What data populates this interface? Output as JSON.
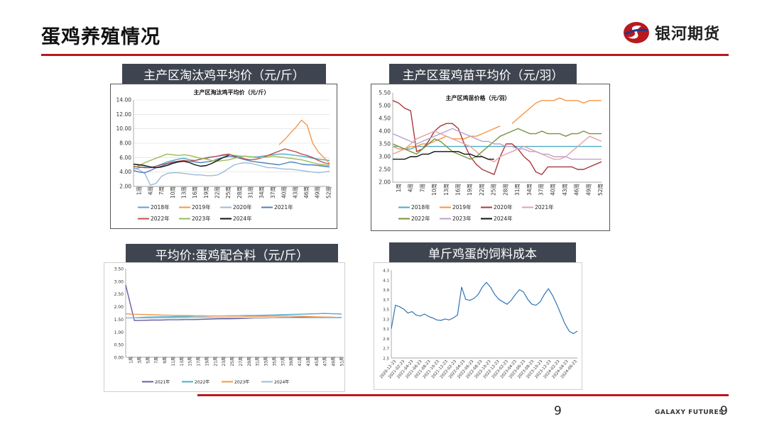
{
  "header": {
    "title": "蛋鸡养殖情况",
    "brand_name": "银河期货",
    "brand_color": "#b8191f",
    "logo_icon": "galaxy-s-logo-icon"
  },
  "footer": {
    "page_number": "9",
    "brand_en": "GALAXY FUTURES",
    "page_number_right": "9"
  },
  "panels": {
    "p1": {
      "label": "主产区淘汰鸡平均价（元/斤）"
    },
    "p2": {
      "label": "主产区蛋鸡苗平均价（元/羽）"
    },
    "p3": {
      "label": "平均价:蛋鸡配合料（元/斤）"
    },
    "p4": {
      "label": "单斤鸡蛋的饲料成本"
    }
  },
  "chart_data": [
    {
      "id": "cull-hen",
      "type": "line",
      "title": "主产区淘汰鸡平均价（元/斤）",
      "ylim": [
        2,
        14
      ],
      "yticks": [
        "2.00",
        "4.00",
        "6.00",
        "8.00",
        "10.00",
        "12.00",
        "14.00"
      ],
      "x_labels": [
        "1周",
        "4周",
        "7周",
        "10周",
        "13周",
        "16周",
        "19周",
        "22周",
        "25周",
        "28周",
        "31周",
        "34周",
        "37周",
        "40周",
        "43周",
        "46周",
        "49周",
        "52周"
      ],
      "legend": "bottom",
      "grid": true,
      "series": [
        {
          "name": "2018年",
          "color": "#4bacc6",
          "values": [
            4.4,
            4.6,
            4.7,
            4.6,
            4.8,
            5.1,
            5.4,
            5.6,
            5.8,
            5.9,
            5.7,
            5.6,
            5.8,
            6.0,
            6.1,
            6.2,
            6.3,
            6.4,
            6.3,
            6.2,
            6.2,
            6.1,
            6.1,
            6.2,
            6.3,
            6.4,
            6.5,
            6.5,
            6.4,
            6.3,
            6.2,
            6.1,
            5.9,
            5.8,
            5.7,
            5.6
          ]
        },
        {
          "name": "2019年",
          "color": "#f79646",
          "values": [
            null,
            null,
            null,
            null,
            null,
            null,
            null,
            null,
            null,
            null,
            null,
            null,
            null,
            null,
            null,
            null,
            null,
            null,
            null,
            null,
            null,
            null,
            null,
            null,
            null,
            null,
            7.8,
            8.5,
            9.4,
            10.2,
            11.2,
            10.5,
            8.0,
            6.8,
            6.0,
            5.2
          ]
        },
        {
          "name": "2020年",
          "color": "#9bbbd9",
          "values": [
            4.6,
            4.3,
            3.8,
            2.2,
            2.4,
            3.4,
            3.8,
            3.9,
            3.9,
            3.8,
            3.7,
            3.6,
            3.6,
            3.5,
            3.5,
            3.6,
            4.0,
            4.5,
            5.0,
            5.2,
            5.3,
            5.2,
            5.0,
            4.8,
            4.6,
            4.6,
            4.5,
            4.4,
            4.4,
            4.3,
            4.2,
            4.1,
            4.0,
            3.9,
            4.0,
            4.1
          ]
        },
        {
          "name": "2021年",
          "color": "#4f81bd",
          "values": [
            4.2,
            4.0,
            3.9,
            4.2,
            4.6,
            4.8,
            5.1,
            5.3,
            5.5,
            5.6,
            5.5,
            5.4,
            5.3,
            5.4,
            5.5,
            5.8,
            6.0,
            6.2,
            6.1,
            5.9,
            5.7,
            5.5,
            5.4,
            5.3,
            5.2,
            5.1,
            5.0,
            5.2,
            5.4,
            5.3,
            5.1,
            5.0,
            5.0,
            4.9,
            4.8,
            4.7
          ]
        },
        {
          "name": "2022年",
          "color": "#c0504d",
          "values": [
            4.8,
            4.7,
            4.6,
            4.6,
            4.8,
            5.0,
            5.2,
            5.4,
            5.5,
            5.6,
            5.5,
            5.6,
            5.8,
            5.9,
            6.1,
            6.2,
            6.4,
            6.5,
            6.2,
            6.0,
            5.8,
            5.7,
            5.8,
            6.0,
            6.3,
            6.6,
            6.9,
            7.2,
            7.0,
            6.8,
            6.5,
            6.3,
            6.0,
            5.6,
            5.3,
            5.1
          ]
        },
        {
          "name": "2023年",
          "color": "#9bbb59",
          "values": [
            4.6,
            4.9,
            5.3,
            5.6,
            5.9,
            6.2,
            6.5,
            6.4,
            6.3,
            6.4,
            6.3,
            6.1,
            5.9,
            5.8,
            5.6,
            5.5,
            5.6,
            5.7,
            5.9,
            6.1,
            6.2,
            6.1,
            6.0,
            6.0,
            6.1,
            6.2,
            6.1,
            6.0,
            5.9,
            5.8,
            5.7,
            5.5,
            5.3,
            5.1,
            5.0,
            4.9
          ]
        },
        {
          "name": "2024年",
          "color": "#111111",
          "values": [
            5.1,
            5.0,
            4.9,
            4.7,
            4.6,
            4.7,
            4.9,
            5.2,
            5.4,
            5.5,
            5.3,
            5.0,
            4.8,
            4.9,
            5.2,
            5.6,
            6.0,
            6.3,
            null,
            null,
            null,
            null,
            null,
            null,
            null,
            null,
            null,
            null,
            null,
            null,
            null,
            null,
            null,
            null,
            null,
            null
          ]
        }
      ]
    },
    {
      "id": "chick",
      "type": "line",
      "title": "主产区鸡苗价格（元/羽）",
      "ylim": [
        2,
        5.5
      ],
      "yticks": [
        "2.00",
        "2.50",
        "3.00",
        "3.50",
        "4.00",
        "4.50",
        "5.00",
        "5.50"
      ],
      "x_labels": [
        "1周",
        "4周",
        "7周",
        "10周",
        "13周",
        "16周",
        "19周",
        "22周",
        "25周",
        "28周",
        "31周",
        "34周",
        "37周",
        "40周",
        "43周",
        "46周",
        "49周",
        "52周"
      ],
      "legend": "bottom",
      "grid": false,
      "series": [
        {
          "name": "2018年",
          "color": "#4bacc6",
          "values": [
            3.4,
            3.4,
            3.3,
            3.3,
            3.4,
            3.4,
            3.4,
            3.4,
            3.4,
            3.4,
            3.4,
            3.4,
            3.4,
            3.4,
            3.4,
            3.4,
            3.4,
            3.4,
            3.4,
            3.4,
            3.4,
            3.4,
            3.4,
            3.4,
            3.4,
            3.4,
            3.4,
            3.4,
            3.4,
            3.4,
            3.4,
            3.4,
            3.4,
            3.4,
            3.4,
            3.4
          ]
        },
        {
          "name": "2019年",
          "color": "#f79646",
          "values": [
            3.4,
            3.3,
            3.3,
            3.4,
            3.4,
            3.5,
            3.5,
            3.6,
            3.7,
            3.8,
            3.7,
            3.7,
            3.7,
            3.8,
            3.8,
            3.9,
            4.0,
            4.1,
            4.2,
            null,
            4.3,
            4.5,
            4.7,
            4.9,
            5.1,
            5.2,
            5.2,
            5.2,
            5.3,
            5.2,
            5.2,
            5.2,
            5.1,
            5.2,
            5.2,
            5.2
          ]
        },
        {
          "name": "2020年",
          "color": "#a8383b",
          "values": [
            5.2,
            5.1,
            4.9,
            4.8,
            3.2,
            3.3,
            3.6,
            4.0,
            4.2,
            4.3,
            4.3,
            4.1,
            3.5,
            3.0,
            2.7,
            2.5,
            2.4,
            2.3,
            3.0,
            3.5,
            3.5,
            3.3,
            3.0,
            2.8,
            2.4,
            2.3,
            2.6,
            2.6,
            2.6,
            2.6,
            2.6,
            2.5,
            2.5,
            2.6,
            2.7,
            2.8
          ]
        },
        {
          "name": "2021年",
          "color": "#e6a2a3",
          "values": [
            3.1,
            3.2,
            3.3,
            3.5,
            3.7,
            3.8,
            3.9,
            4.0,
            3.9,
            3.8,
            3.7,
            3.6,
            3.5,
            3.4,
            3.2,
            3.0,
            2.9,
            2.8,
            3.0,
            3.1,
            3.2,
            3.3,
            3.4,
            3.3,
            3.2,
            3.1,
            3.0,
            2.9,
            2.9,
            3.0,
            3.2,
            3.4,
            3.6,
            3.8,
            3.7,
            3.6
          ]
        },
        {
          "name": "2022年",
          "color": "#77933c",
          "values": [
            3.5,
            3.4,
            3.3,
            3.2,
            3.1,
            3.3,
            3.5,
            3.7,
            3.6,
            3.4,
            3.2,
            3.1,
            3.0,
            2.9,
            3.0,
            3.2,
            3.4,
            3.6,
            3.8,
            3.9,
            4.0,
            4.1,
            4.0,
            3.9,
            3.9,
            4.0,
            3.9,
            3.9,
            3.9,
            3.8,
            3.9,
            3.9,
            4.0,
            3.9,
            3.9,
            3.9
          ]
        },
        {
          "name": "2023年",
          "color": "#b7a4cc",
          "values": [
            3.9,
            3.8,
            3.7,
            3.6,
            3.5,
            3.6,
            3.7,
            3.8,
            3.9,
            4.0,
            4.1,
            4.0,
            3.9,
            3.8,
            3.7,
            3.6,
            3.6,
            3.5,
            3.5,
            3.4,
            3.4,
            3.3,
            3.3,
            3.2,
            3.2,
            3.1,
            3.1,
            3.0,
            3.0,
            3.0,
            2.9,
            2.9,
            2.9,
            2.9,
            2.9,
            2.9
          ]
        },
        {
          "name": "2024年",
          "color": "#111111",
          "values": [
            2.9,
            2.9,
            2.9,
            3.0,
            3.0,
            3.1,
            3.1,
            3.2,
            3.2,
            3.2,
            3.2,
            3.2,
            3.1,
            3.1,
            3.0,
            3.0,
            2.9,
            2.9,
            null,
            null,
            null,
            null,
            null,
            null,
            null,
            null,
            null,
            null,
            null,
            null,
            null,
            null,
            null,
            null,
            null,
            null
          ]
        }
      ]
    },
    {
      "id": "feed",
      "type": "line",
      "ylim": [
        0,
        3.5
      ],
      "yticks": [
        "0.00",
        "0.50",
        "1.00",
        "1.50",
        "2.00",
        "2.50",
        "3.00",
        "3.50"
      ],
      "x_labels": [
        "1周",
        "3周",
        "5周",
        "7周",
        "9周",
        "11周",
        "13周",
        "15周",
        "17周",
        "19周",
        "21周",
        "23周",
        "25周",
        "27周",
        "29周",
        "31周",
        "33周",
        "35周",
        "37周",
        "39周",
        "41周",
        "43周",
        "45周",
        "47周",
        "49周",
        "51周"
      ],
      "legend": "bottom",
      "grid": false,
      "series": [
        {
          "name": "2021年",
          "color": "#6d5aa6",
          "values": [
            2.85,
            1.45,
            1.46,
            1.47,
            1.47,
            1.48,
            1.48,
            1.49,
            1.49,
            1.5,
            1.51,
            1.52,
            1.52,
            1.53,
            1.54,
            1.55,
            1.55,
            1.56,
            1.57,
            1.57,
            1.58,
            1.58,
            1.58,
            1.58,
            1.58,
            1.57
          ]
        },
        {
          "name": "2022年",
          "color": "#4bacc6",
          "values": [
            1.55,
            1.56,
            1.58,
            1.59,
            1.6,
            1.6,
            1.61,
            1.61,
            1.62,
            1.62,
            1.63,
            1.63,
            1.64,
            1.64,
            1.65,
            1.65,
            1.66,
            1.67,
            1.68,
            1.69,
            1.7,
            1.71,
            1.72,
            1.73,
            1.72,
            1.71
          ]
        },
        {
          "name": "2023年",
          "color": "#f79646",
          "values": [
            1.72,
            1.7,
            1.69,
            1.68,
            1.67,
            1.66,
            1.65,
            1.65,
            1.64,
            1.64,
            1.63,
            1.63,
            1.63,
            1.63,
            1.62,
            1.62,
            1.62,
            1.62,
            1.63,
            1.63,
            1.62,
            1.61,
            1.6,
            1.59,
            1.58,
            1.57
          ]
        },
        {
          "name": "2024年",
          "color": "#9bbbd9",
          "values": [
            1.56,
            1.55,
            1.55,
            1.55,
            1.56,
            1.56,
            1.56,
            1.56,
            1.56,
            1.56,
            1.56,
            1.56,
            1.56,
            1.56,
            1.56,
            1.56,
            1.56,
            1.56,
            1.56,
            1.56,
            1.56,
            1.56,
            1.56,
            1.56,
            1.56,
            1.56
          ]
        }
      ]
    },
    {
      "id": "feed-cost",
      "type": "line",
      "ylim": [
        2.5,
        4.3
      ],
      "yticks": [
        "2.5",
        "2.7",
        "2.9",
        "3.1",
        "3.3",
        "3.5",
        "3.7",
        "3.9",
        "4.1",
        "4.3"
      ],
      "x_labels": [
        "2020-12-23",
        "2021-02-23",
        "2021-04-23",
        "2021-06-23",
        "2021-08-23",
        "2021-10-23",
        "2021-12-23",
        "2022-02-23",
        "2022-04-23",
        "2022-06-23",
        "2022-08-23",
        "2022-10-23",
        "2022-12-23",
        "2023-02-23",
        "2023-04-23",
        "2023-06-23",
        "2023-08-23",
        "2023-10-23",
        "2023-12-23",
        "2024-02-23",
        "2024-04-23",
        "2024-06-23"
      ],
      "legend": "none",
      "grid": false,
      "series": [
        {
          "name": "",
          "color": "#2e75b6",
          "values": [
            3.1,
            3.58,
            3.55,
            3.5,
            3.42,
            3.45,
            3.38,
            3.36,
            3.4,
            3.35,
            3.32,
            3.28,
            3.27,
            3.3,
            3.28,
            3.32,
            3.38,
            3.95,
            3.7,
            3.68,
            3.72,
            3.8,
            3.95,
            4.05,
            3.95,
            3.8,
            3.7,
            3.65,
            3.6,
            3.68,
            3.8,
            3.9,
            3.85,
            3.7,
            3.6,
            3.58,
            3.65,
            3.8,
            3.92,
            3.78,
            3.6,
            3.4,
            3.2,
            3.05,
            3.0,
            3.05
          ]
        }
      ]
    }
  ]
}
